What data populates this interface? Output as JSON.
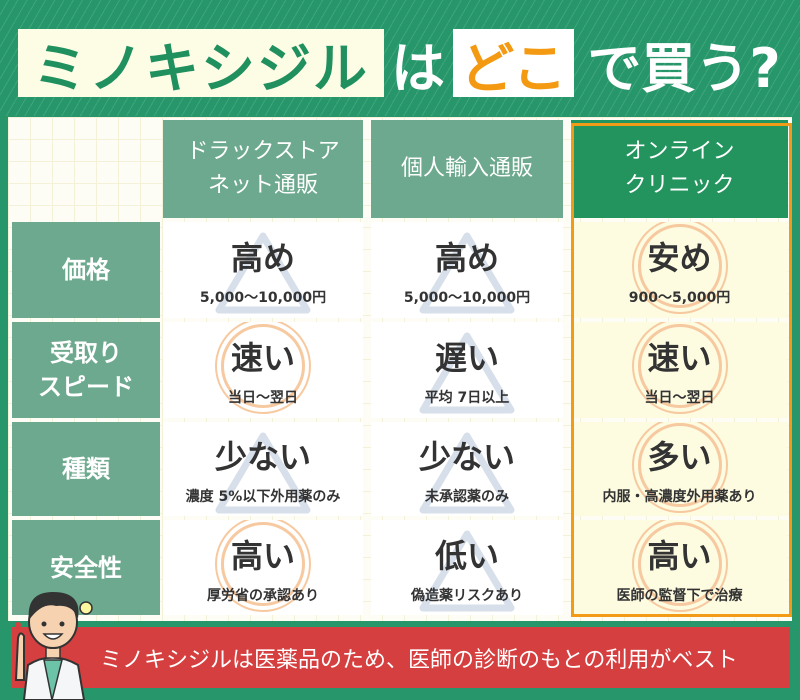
{
  "title": {
    "part1": "ミノキシジル",
    "part2": "は",
    "part3": "どこ",
    "part4": "で買う?"
  },
  "columns": [
    {
      "label_line1": "ドラックストア",
      "label_line2": "ネット通販"
    },
    {
      "label_line1": "個人輸入通販",
      "label_line2": ""
    },
    {
      "label_line1": "オンライン",
      "label_line2": "クリニック"
    }
  ],
  "rows": [
    {
      "label_line1": "価格",
      "label_line2": "",
      "cells": [
        {
          "main": "高め",
          "sub": "5,000〜10,000円",
          "mark": "triangle"
        },
        {
          "main": "高め",
          "sub": "5,000〜10,000円",
          "mark": "triangle"
        },
        {
          "main": "安め",
          "sub": "900〜5,000円",
          "mark": "circle"
        }
      ]
    },
    {
      "label_line1": "受取り",
      "label_line2": "スピード",
      "cells": [
        {
          "main": "速い",
          "sub": "当日〜翌日",
          "mark": "circle"
        },
        {
          "main": "遅い",
          "sub": "平均 7日以上",
          "mark": "triangle"
        },
        {
          "main": "速い",
          "sub": "当日〜翌日",
          "mark": "circle"
        }
      ]
    },
    {
      "label_line1": "種類",
      "label_line2": "",
      "cells": [
        {
          "main": "少ない",
          "sub": "濃度 5%以下外用薬のみ",
          "mark": "triangle"
        },
        {
          "main": "少ない",
          "sub": "未承認薬のみ",
          "mark": "triangle"
        },
        {
          "main": "多い",
          "sub": "内服・高濃度外用薬あり",
          "mark": "circle"
        }
      ]
    },
    {
      "label_line1": "安全性",
      "label_line2": "",
      "cells": [
        {
          "main": "高い",
          "sub": "厚労省の承認あり",
          "mark": "circle"
        },
        {
          "main": "低い",
          "sub": "偽造薬リスクあり",
          "mark": "triangle"
        },
        {
          "main": "高い",
          "sub": "医師の監督下で治療",
          "mark": "circle"
        }
      ]
    }
  ],
  "highlight_column": "オンラインクリニック",
  "banner": "ミノキシジルは医薬品のため、医師の診断のもとの利用がベスト",
  "colors": {
    "green": "#27966a",
    "header_green": "#6da98e",
    "accent_orange": "#f39a12",
    "banner_red": "#d63f3f",
    "cream": "#fdfde6"
  }
}
